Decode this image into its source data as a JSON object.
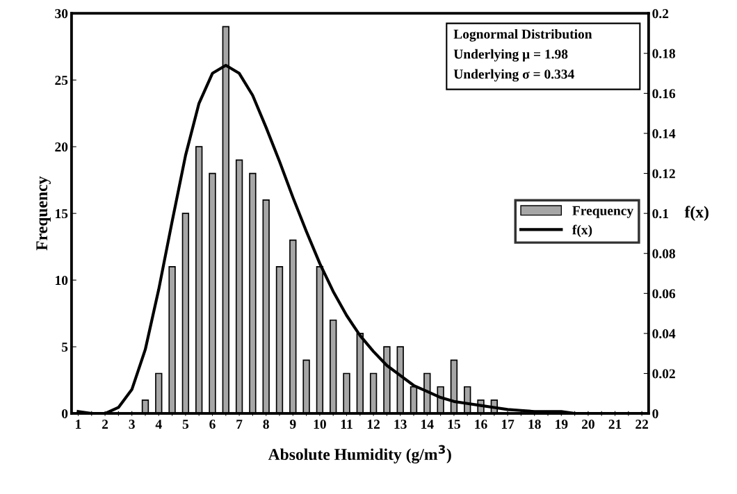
{
  "chart_data": {
    "type": "bar",
    "xlabel": "Absolute Humidity (g/m$^{3}$)",
    "ylabel": "Frequency",
    "y2label": "f(x)",
    "categories": [
      "1",
      null,
      "2",
      null,
      "3",
      null,
      "4",
      null,
      "5",
      null,
      "6",
      null,
      "7",
      null,
      "8",
      null,
      "9",
      null,
      "10",
      null,
      "11",
      null,
      "12",
      null,
      "13",
      null,
      "14",
      null,
      "15",
      null,
      "16",
      null,
      "17",
      null,
      "18",
      null,
      "19",
      null,
      "20",
      null,
      "21",
      null,
      "22"
    ],
    "series": [
      {
        "name": "Frequency",
        "color": "#a6a6a6",
        "values": [
          null,
          null,
          null,
          null,
          null,
          1,
          3,
          11,
          15,
          20,
          18,
          29,
          19,
          18,
          16,
          11,
          13,
          4,
          11,
          7,
          3,
          6,
          3,
          5,
          5,
          2,
          3,
          2,
          4,
          2,
          1,
          1,
          null,
          null,
          null,
          null,
          null,
          null,
          null,
          null,
          null,
          null,
          null
        ]
      },
      {
        "name": "f(x)",
        "type": "line",
        "axis": "y2",
        "color": "#000000",
        "values": [
          0.001,
          0,
          0,
          0.003,
          0.012,
          0.032,
          0.062,
          0.096,
          0.129,
          0.155,
          0.17,
          0.174,
          0.17,
          0.159,
          0.143,
          0.126,
          0.108,
          0.091,
          0.075,
          0.061,
          0.049,
          0.039,
          0.031,
          0.024,
          0.019,
          0.014,
          0.011,
          0.008,
          0.006,
          0.005,
          0.004,
          0.003,
          0.002,
          0.0015,
          0.001,
          0.001,
          0.001,
          0,
          0,
          0,
          0,
          0,
          0
        ]
      }
    ],
    "ylim": [
      0,
      30
    ],
    "yticks": [
      0,
      5,
      10,
      15,
      20,
      25,
      30
    ],
    "y2lim": [
      0,
      0.2
    ],
    "y2ticks": [
      0,
      0.02,
      0.04,
      0.06,
      0.08,
      0.1,
      0.12,
      0.14,
      0.16,
      0.18,
      0.2
    ],
    "annotations": [
      "Lognormal Distribution",
      "Underlying μ = 1.98",
      "Underlying σ = 0.334"
    ],
    "legend": "right",
    "grid": false
  }
}
